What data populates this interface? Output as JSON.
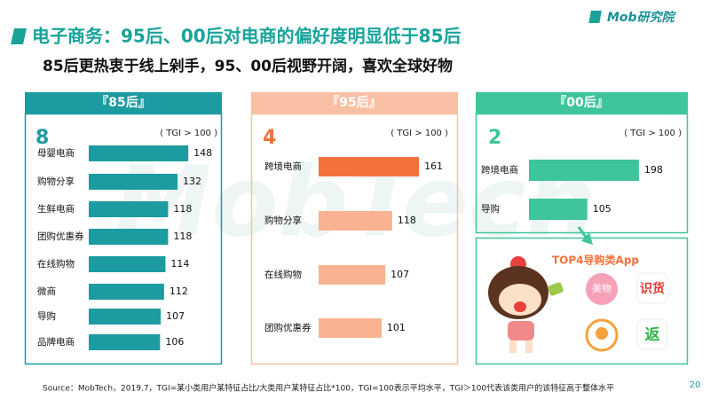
{
  "header": {
    "title": "电子商务：95后、00后对电商的偏好度明显低于85后",
    "subtitle": "85后更热衷于线上剁手，95、00后视野开阔，喜欢全球好物",
    "logo": "Mob研究院"
  },
  "watermark": "MobTech",
  "chart_data": [
    {
      "type": "bar",
      "orientation": "horizontal",
      "title": "『85后』",
      "badge": 8,
      "note": "( TGI > 100 )",
      "categories": [
        "母婴电商",
        "购物分享",
        "生鲜电商",
        "团购优惠券",
        "在线购物",
        "微商",
        "导购",
        "品牌电商"
      ],
      "values": [
        148,
        132,
        118,
        118,
        114,
        112,
        107,
        106
      ],
      "colors": [
        "#1c9ba0",
        "#1c9ba0",
        "#1c9ba0",
        "#1c9ba0",
        "#1c9ba0",
        "#1c9ba0",
        "#1c9ba0",
        "#1c9ba0"
      ],
      "xlim": [
        0,
        190
      ]
    },
    {
      "type": "bar",
      "orientation": "horizontal",
      "title": "『95后』",
      "badge": 4,
      "note": "( TGI > 100 )",
      "categories": [
        "跨境电商",
        "购物分享",
        "在线购物",
        "团购优惠券"
      ],
      "values": [
        161,
        118,
        107,
        101
      ],
      "colors": [
        "#f4713d",
        "#f9b292",
        "#f9b292",
        "#f9b292"
      ],
      "xlim": [
        0,
        215
      ]
    },
    {
      "type": "bar",
      "orientation": "horizontal",
      "title": "『00后』",
      "badge": 2,
      "note": "( TGI > 100 )",
      "categories": [
        "跨境电商",
        "导购"
      ],
      "values": [
        198,
        105
      ],
      "colors": [
        "#3ec59b",
        "#3ec59b"
      ],
      "xlim": [
        0,
        278
      ]
    }
  ],
  "apps": {
    "title": "TOP4导购类App",
    "icons": [
      "美物",
      "识货",
      "返"
    ]
  },
  "footer": {
    "source": "Source：MobTech，2019.7，TGI=某小类用户某特征占比/大类用户某特征占比*100，TGI=100表示平均水平，TGI＞100代表该类用户的该特征高于整体水平",
    "page": "20"
  }
}
